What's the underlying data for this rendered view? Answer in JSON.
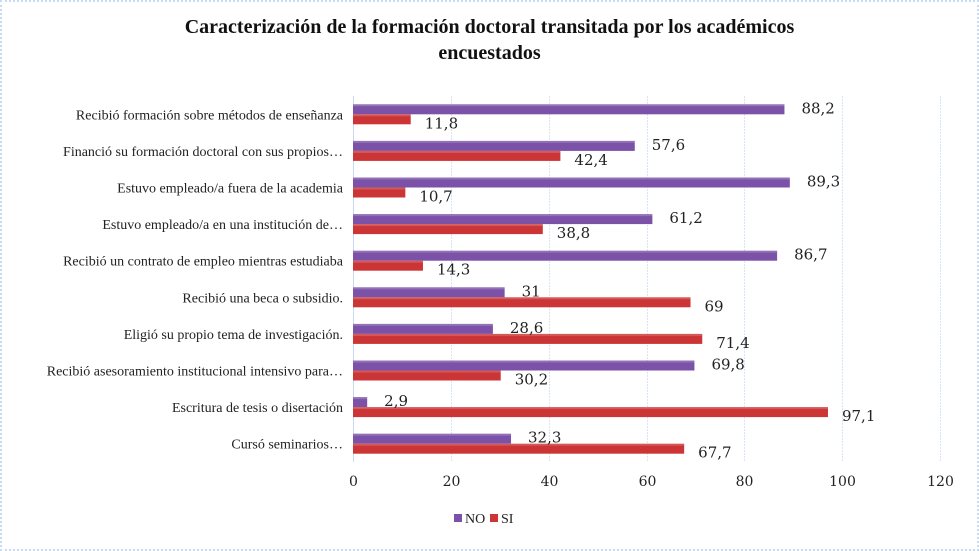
{
  "chart_data": {
    "type": "bar",
    "orientation": "horizontal",
    "title": "Caracterización de la formación doctoral transitada por los académicos encuestados",
    "title_lines": [
      "Caracterización de la formación doctoral transitada por los académicos",
      "encuestados"
    ],
    "categories": [
      "Recibió formación sobre métodos de enseñanza",
      "Financió su formación doctoral con sus propios…",
      "Estuvo empleado/a fuera de la academia",
      "Estuvo empleado/a en una institución de…",
      "Recibió un contrato de empleo mientras estudiaba",
      "Recibió una beca o subsidio.",
      "Eligió su propio tema de investigación.",
      "Recibió asesoramiento institucional intensivo para…",
      "Escritura de  tesis o disertación",
      "Cursó seminarios…"
    ],
    "series": [
      {
        "name": "NO",
        "color": "#7b52a8",
        "values": [
          88.2,
          57.6,
          89.3,
          61.2,
          86.7,
          31,
          28.6,
          69.8,
          2.9,
          32.3
        ],
        "labels": [
          "88,2",
          "57,6",
          "89,3",
          "61,2",
          "86,7",
          "31",
          "28,6",
          "69,8",
          "2,9",
          "32,3"
        ]
      },
      {
        "name": "SI",
        "color": "#cc3535",
        "values": [
          11.8,
          42.4,
          10.7,
          38.8,
          14.3,
          69,
          71.4,
          30.2,
          97.1,
          67.7
        ],
        "labels": [
          "11,8",
          "42,4",
          "10,7",
          "38,8",
          "14,3",
          "69",
          "71,4",
          "30,2",
          "97,1",
          "67,7"
        ]
      }
    ],
    "xlabel": "",
    "ylabel": "",
    "xlim": [
      0,
      120
    ],
    "xticks": [
      0,
      20,
      40,
      60,
      80,
      100,
      120
    ],
    "xtick_labels": [
      "0",
      "20",
      "40",
      "60",
      "80",
      "100",
      "120"
    ],
    "grid": true,
    "legend_position": "bottom"
  }
}
